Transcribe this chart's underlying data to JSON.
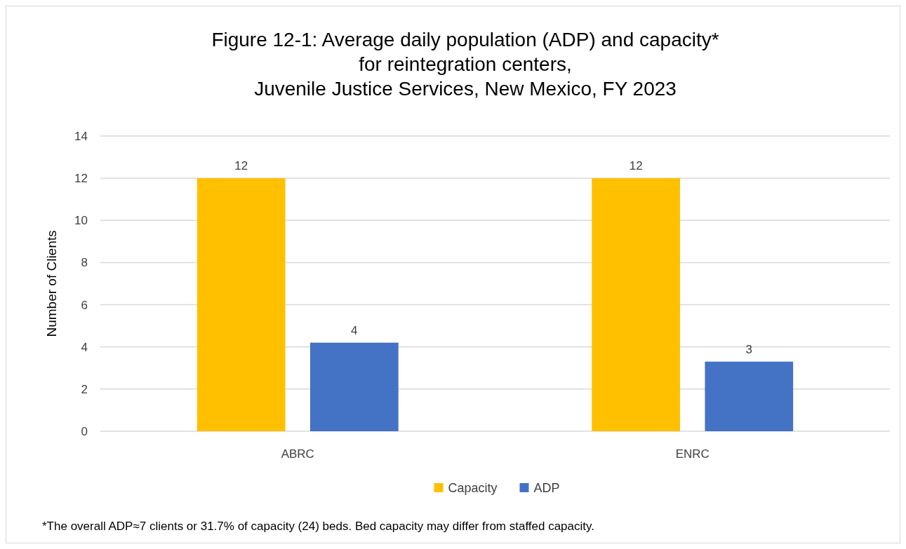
{
  "chart_data": {
    "type": "bar",
    "title": "Figure 12-1: Average daily population (ADP) and capacity*\nfor reintegration centers,\nJuvenile Justice Services, New Mexico, FY 2023",
    "ylabel": "Number of Clients",
    "categories": [
      "ABRC",
      "ENRC"
    ],
    "series": [
      {
        "name": "Capacity",
        "color": "#ffc000",
        "values": [
          12,
          12
        ],
        "value_labels": [
          "12",
          "12"
        ]
      },
      {
        "name": "ADP",
        "color": "#4472c4",
        "values": [
          4.2,
          3.3
        ],
        "value_labels": [
          "4",
          "3"
        ]
      }
    ],
    "ylim": [
      0,
      14
    ],
    "yticks": [
      0,
      2,
      4,
      6,
      8,
      10,
      12,
      14
    ],
    "grid": "y",
    "legend": "bottom",
    "annotations": [
      "*The overall ADP≈7 clients or 31.7% of capacity (24) beds. Bed capacity may differ from staffed capacity."
    ]
  }
}
